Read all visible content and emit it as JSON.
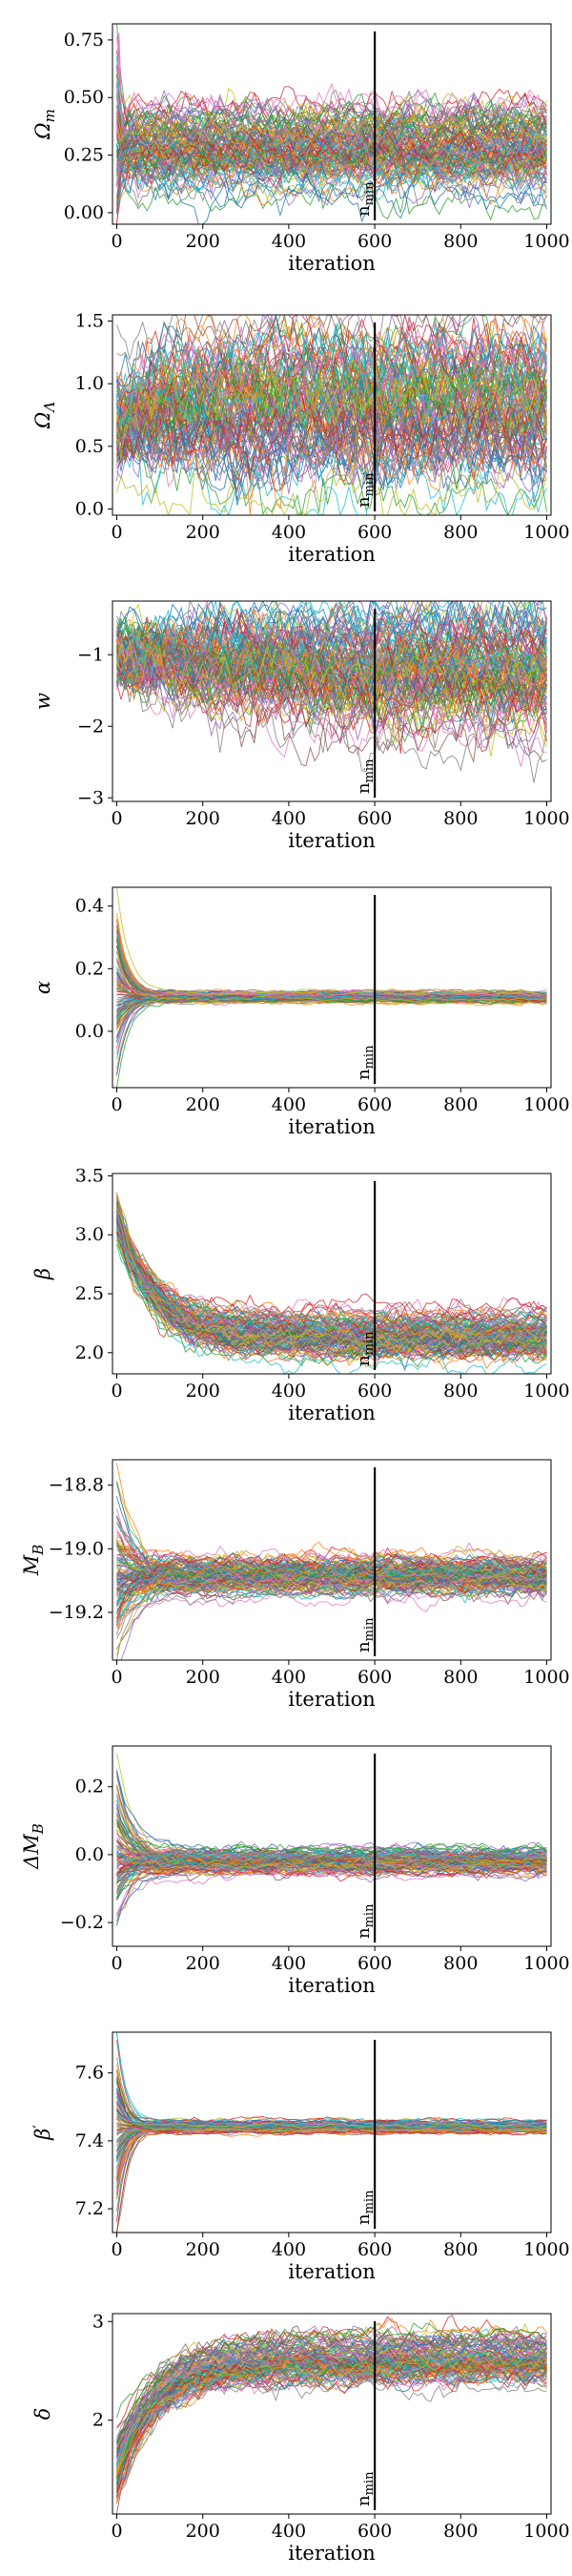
{
  "figure": {
    "title": "",
    "xlabel": "iteration",
    "threshold_label": "n",
    "threshold_label_sub": "min",
    "palette": [
      "#1f77b4",
      "#ff7f0e",
      "#2ca02c",
      "#d62728",
      "#9467bd",
      "#8c564b",
      "#e377c2",
      "#7f7f7f",
      "#bcbd22",
      "#17becf"
    ]
  },
  "chart_data": [
    {
      "type": "line",
      "ylabel": "Ω",
      "ylabel_sub": "m",
      "xlim": [
        -10,
        1010
      ],
      "ylim": [
        -0.05,
        0.82
      ],
      "x_ticks": [
        0,
        200,
        400,
        600,
        800,
        1000
      ],
      "y_ticks": [
        "0.00",
        "0.25",
        "0.50",
        "0.75"
      ],
      "n_min": 600,
      "walkers": 120,
      "iterations": 1000,
      "start": {
        "center": 0.32,
        "spread": 0.2
      },
      "equilibrium": {
        "center": 0.28,
        "spread": 0.09,
        "min": 0.0,
        "max": 0.52
      },
      "burn_in_iterations": 30,
      "outliers": [
        {
          "iteration": 5,
          "value": 0.78
        }
      ]
    },
    {
      "type": "line",
      "ylabel": "Ω",
      "ylabel_sub": "Λ",
      "xlim": [
        -10,
        1010
      ],
      "ylim": [
        -0.05,
        1.55
      ],
      "x_ticks": [
        0,
        200,
        400,
        600,
        800,
        1000
      ],
      "y_ticks": [
        "0.0",
        "0.5",
        "1.0",
        "1.5"
      ],
      "n_min": 600,
      "walkers": 120,
      "iterations": 1000,
      "start": {
        "center": 0.72,
        "spread": 0.22
      },
      "equilibrium": {
        "center": 0.82,
        "spread": 0.3,
        "min": 0.08,
        "max": 1.48
      },
      "burn_in_iterations": 200
    },
    {
      "type": "line",
      "ylabel": "w",
      "ylabel_sub": "",
      "xlim": [
        -10,
        1010
      ],
      "ylim": [
        -3.05,
        -0.25
      ],
      "x_ticks": [
        0,
        200,
        400,
        600,
        800,
        1000
      ],
      "y_ticks": [
        "−3",
        "−2",
        "−1"
      ],
      "n_min": 600,
      "walkers": 120,
      "iterations": 1000,
      "start": {
        "center": -1.0,
        "spread": 0.18
      },
      "equilibrium": {
        "center": -1.15,
        "spread": 0.45,
        "min": -2.95,
        "max": -0.45
      },
      "burn_in_iterations": 450
    },
    {
      "type": "line",
      "ylabel": "α",
      "ylabel_sub": "",
      "xlim": [
        -10,
        1010
      ],
      "ylim": [
        -0.18,
        0.46
      ],
      "x_ticks": [
        0,
        200,
        400,
        600,
        800,
        1000
      ],
      "y_ticks": [
        "0.0",
        "0.2",
        "0.4"
      ],
      "n_min": 600,
      "walkers": 120,
      "iterations": 1000,
      "start": {
        "center": 0.12,
        "spread": 0.14
      },
      "equilibrium": {
        "center": 0.11,
        "spread": 0.008,
        "min": 0.08,
        "max": 0.14
      },
      "burn_in_iterations": 60
    },
    {
      "type": "line",
      "ylabel": "β",
      "ylabel_sub": "",
      "xlim": [
        -10,
        1010
      ],
      "ylim": [
        1.82,
        3.52
      ],
      "x_ticks": [
        0,
        200,
        400,
        600,
        800,
        1000
      ],
      "y_ticks": [
        "2.0",
        "2.5",
        "3.0",
        "3.5"
      ],
      "n_min": 600,
      "walkers": 120,
      "iterations": 1000,
      "start": {
        "center": 3.15,
        "spread": 0.1
      },
      "equilibrium": {
        "center": 2.15,
        "spread": 0.1,
        "min": 1.88,
        "max": 2.48
      },
      "burn_in_iterations": 180
    },
    {
      "type": "line",
      "ylabel": "M",
      "ylabel_sub": "B",
      "xlim": [
        -10,
        1010
      ],
      "ylim": [
        -19.35,
        -18.72
      ],
      "x_ticks": [
        0,
        200,
        400,
        600,
        800,
        1000
      ],
      "y_ticks": [
        "−19.2",
        "−19.0",
        "−18.8"
      ],
      "n_min": 600,
      "walkers": 120,
      "iterations": 1000,
      "start": {
        "center": -19.05,
        "spread": 0.12
      },
      "equilibrium": {
        "center": -19.09,
        "spread": 0.03,
        "min": -19.25,
        "max": -18.95
      },
      "burn_in_iterations": 100
    },
    {
      "type": "line",
      "ylabel": "ΔM",
      "ylabel_sub": "B",
      "xlim": [
        -10,
        1010
      ],
      "ylim": [
        -0.27,
        0.32
      ],
      "x_ticks": [
        0,
        200,
        400,
        600,
        800,
        1000
      ],
      "y_ticks": [
        "−0.2",
        "0.0",
        "0.2"
      ],
      "n_min": 600,
      "walkers": 120,
      "iterations": 1000,
      "start": {
        "center": 0.0,
        "spread": 0.12
      },
      "equilibrium": {
        "center": -0.02,
        "spread": 0.018,
        "min": -0.09,
        "max": 0.04
      },
      "burn_in_iterations": 90
    },
    {
      "type": "line",
      "ylabel": "β",
      "ylabel_sub": "′",
      "xlim": [
        -10,
        1010
      ],
      "ylim": [
        7.13,
        7.72
      ],
      "x_ticks": [
        0,
        200,
        400,
        600,
        800,
        1000
      ],
      "y_ticks": [
        "7.2",
        "7.4",
        "7.6"
      ],
      "n_min": 600,
      "walkers": 120,
      "iterations": 1000,
      "start": {
        "center": 7.44,
        "spread": 0.12
      },
      "equilibrium": {
        "center": 7.44,
        "spread": 0.008,
        "min": 7.41,
        "max": 7.47
      },
      "burn_in_iterations": 50
    },
    {
      "type": "line",
      "ylabel": "δ",
      "ylabel_sub": "",
      "xlim": [
        -10,
        1010
      ],
      "ylim": [
        1.05,
        3.08
      ],
      "x_ticks": [
        0,
        200,
        400,
        600,
        800,
        1000
      ],
      "y_ticks": [
        "2",
        "3"
      ],
      "n_min": 600,
      "walkers": 120,
      "iterations": 1000,
      "start": {
        "center": 1.5,
        "spread": 0.2
      },
      "equilibrium": {
        "center": 2.62,
        "spread": 0.12,
        "min": 2.1,
        "max": 2.98
      },
      "burn_in_iterations": 200
    }
  ]
}
